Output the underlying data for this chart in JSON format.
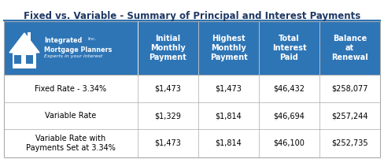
{
  "title": "Fixed vs. Variable - Summary of Principal and Interest Payments",
  "title_fontsize": 8.5,
  "title_color": "#1F3864",
  "header_bg_color": "#2E75B6",
  "header_text_color": "#FFFFFF",
  "row_labels": [
    "Fixed Rate - 3.34%",
    "Variable Rate",
    "Variable Rate with\nPayments Set at 3.34%"
  ],
  "col_headers": [
    "Initial\nMonthly\nPayment",
    "Highest\nMonthly\nPayment",
    "Total\nInterest\nPaid",
    "Balance\nat\nRenewal"
  ],
  "table_data": [
    [
      "$1,473",
      "$1,473",
      "$46,432",
      "$258,077"
    ],
    [
      "$1,329",
      "$1,814",
      "$46,694",
      "$257,244"
    ],
    [
      "$1,473",
      "$1,814",
      "$46,100",
      "$252,735"
    ]
  ],
  "bg_color": "#FFFFFF",
  "text_color": "#000000",
  "logo_bg_color": "#2E75B6",
  "grid_color": "#AAAAAA",
  "cell_fontsize": 7.0,
  "header_fontsize": 7.0,
  "title_underline_color": "#2E75B6",
  "logo_text_color": "#FFFFFF",
  "logo_company": "Integrated\nMortgage Planners",
  "logo_inc": "Inc.",
  "logo_tagline": "Experts in your interest"
}
